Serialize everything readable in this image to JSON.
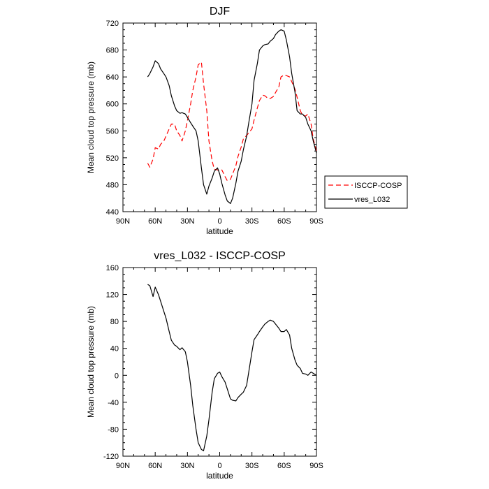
{
  "chart_data": [
    {
      "type": "line",
      "title": "DJF",
      "xlabel": "latitude",
      "ylabel": "Mean cloud top pressure (mb)",
      "x_range": [
        90,
        -90
      ],
      "ylim": [
        440,
        720
      ],
      "x_ticks": [
        90,
        60,
        30,
        0,
        -30,
        -60,
        -90
      ],
      "x_tick_labels": [
        "90N",
        "60N",
        "30N",
        "0",
        "30S",
        "60S",
        "90S"
      ],
      "y_ticks": [
        440,
        480,
        520,
        560,
        600,
        640,
        680,
        720
      ],
      "y_tick_labels": [
        "440",
        "480",
        "520",
        "560",
        "600",
        "640",
        "680",
        "720"
      ],
      "legend_position": "outside-right",
      "series": [
        {
          "name": "ISCCP-COSP",
          "color": "#ff0000",
          "dash": "dashed",
          "x": [
            67,
            65,
            62,
            60,
            57,
            55,
            52,
            50,
            47,
            45,
            42,
            40,
            37,
            35,
            32,
            30,
            27,
            25,
            22,
            20,
            17,
            15,
            12,
            10,
            7,
            5,
            2,
            0,
            -2,
            -5,
            -7,
            -10,
            -12,
            -15,
            -17,
            -20,
            -22,
            -25,
            -27,
            -30,
            -32,
            -35,
            -37,
            -40,
            -42,
            -45,
            -47,
            -50,
            -52,
            -55,
            -57,
            -60,
            -62,
            -65,
            -67,
            -70,
            -72,
            -75,
            -77,
            -80,
            -82,
            -85,
            -87,
            -90
          ],
          "y": [
            512,
            506,
            518,
            535,
            533,
            540,
            545,
            552,
            563,
            570,
            570,
            560,
            553,
            545,
            560,
            575,
            600,
            620,
            640,
            658,
            662,
            630,
            590,
            545,
            515,
            503,
            502,
            500,
            502,
            492,
            486,
            488,
            496,
            508,
            522,
            536,
            548,
            553,
            557,
            563,
            576,
            594,
            605,
            613,
            612,
            608,
            608,
            611,
            617,
            625,
            640,
            643,
            642,
            640,
            633,
            622,
            610,
            590,
            583,
            582,
            585,
            570,
            548,
            530
          ]
        },
        {
          "name": "vres_L032",
          "color": "#000000",
          "dash": "solid",
          "x": [
            67,
            65,
            62,
            60,
            57,
            55,
            52,
            50,
            47,
            45,
            42,
            40,
            37,
            35,
            32,
            30,
            27,
            25,
            22,
            20,
            17,
            15,
            12,
            10,
            7,
            5,
            2,
            0,
            -2,
            -5,
            -7,
            -10,
            -12,
            -15,
            -17,
            -20,
            -22,
            -25,
            -27,
            -30,
            -32,
            -35,
            -37,
            -40,
            -42,
            -45,
            -47,
            -50,
            -52,
            -55,
            -57,
            -60,
            -62,
            -65,
            -67,
            -70,
            -72,
            -75,
            -77,
            -80,
            -82,
            -85,
            -87,
            -90
          ],
          "y": [
            640,
            645,
            655,
            664,
            660,
            652,
            645,
            640,
            627,
            612,
            597,
            590,
            586,
            587,
            585,
            580,
            572,
            567,
            560,
            545,
            505,
            480,
            466,
            478,
            490,
            500,
            505,
            496,
            482,
            465,
            456,
            452,
            460,
            482,
            500,
            515,
            532,
            552,
            572,
            600,
            635,
            660,
            680,
            686,
            688,
            689,
            693,
            697,
            703,
            708,
            710,
            708,
            695,
            670,
            645,
            618,
            590,
            585,
            585,
            580,
            570,
            560,
            545,
            527
          ]
        }
      ]
    },
    {
      "type": "line",
      "title": "vres_L032 - ISCCP-COSP",
      "xlabel": "latitude",
      "ylabel": "Mean cloud top pressure (mb)",
      "x_range": [
        90,
        -90
      ],
      "ylim": [
        -120,
        160
      ],
      "x_ticks": [
        90,
        60,
        30,
        0,
        -30,
        -60,
        -90
      ],
      "x_tick_labels": [
        "90N",
        "60N",
        "30N",
        "0",
        "30S",
        "60S",
        "90S"
      ],
      "y_ticks": [
        -120,
        -80,
        -40,
        0,
        40,
        80,
        120,
        160
      ],
      "y_tick_labels": [
        "-120",
        "-80",
        "-40",
        "0",
        "40",
        "80",
        "120",
        "160"
      ],
      "series": [
        {
          "color": "#000000",
          "dash": "solid",
          "x": [
            67,
            65,
            62,
            60,
            57,
            55,
            52,
            50,
            47,
            45,
            42,
            40,
            37,
            35,
            32,
            30,
            27,
            25,
            22,
            20,
            17,
            15,
            12,
            10,
            7,
            5,
            2,
            0,
            -2,
            -5,
            -7,
            -10,
            -12,
            -15,
            -17,
            -20,
            -22,
            -25,
            -27,
            -30,
            -32,
            -35,
            -37,
            -40,
            -42,
            -45,
            -47,
            -50,
            -52,
            -55,
            -57,
            -60,
            -62,
            -65,
            -67,
            -70,
            -72,
            -75,
            -77,
            -80,
            -82,
            -85,
            -87,
            -90
          ],
          "y": [
            135,
            133,
            117,
            131,
            120,
            110,
            95,
            85,
            65,
            52,
            45,
            43,
            38,
            41,
            35,
            20,
            -15,
            -45,
            -80,
            -100,
            -110,
            -112,
            -90,
            -66,
            -25,
            -5,
            3,
            5,
            -2,
            -10,
            -20,
            -35,
            -37,
            -38,
            -33,
            -28,
            -25,
            -15,
            5,
            35,
            53,
            60,
            65,
            72,
            76,
            80,
            82,
            80,
            76,
            70,
            65,
            65,
            68,
            60,
            40,
            23,
            15,
            10,
            3,
            2,
            0,
            5,
            3,
            0
          ]
        }
      ]
    }
  ]
}
